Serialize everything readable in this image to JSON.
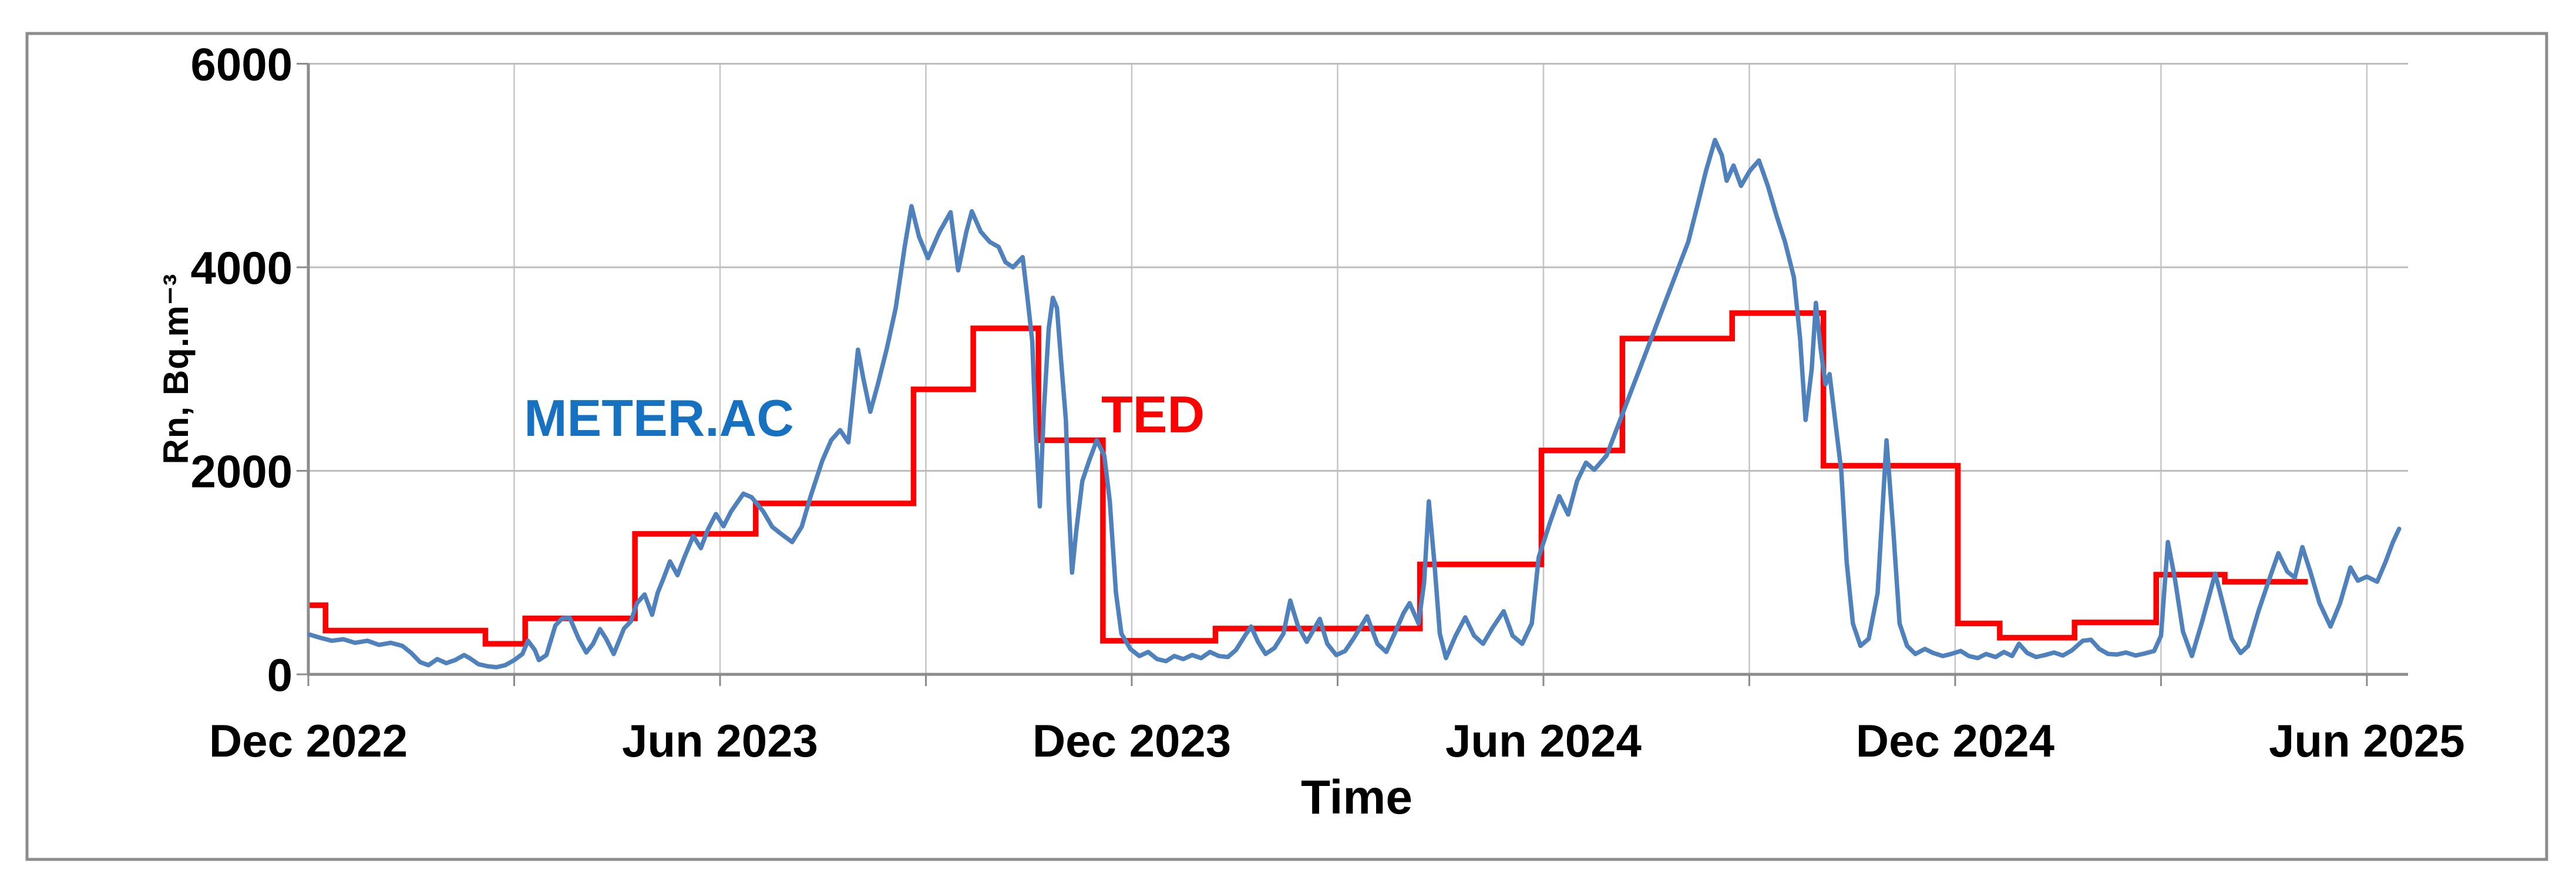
{
  "figure": {
    "background_color": "#ffffff",
    "border_color": "#8c8c8c"
  },
  "chart_data": {
    "type": "line",
    "title": "",
    "xlabel": "Time",
    "ylabel": "Rn, Bq.m⁻³",
    "x_unit": "months since Dec 2022",
    "xlim": [
      0,
      30.6
    ],
    "ylim": [
      0,
      6000
    ],
    "y_ticks": [
      "0",
      "2000",
      "4000",
      "6000"
    ],
    "y_tick_values": [
      0,
      2000,
      4000,
      6000
    ],
    "grid": {
      "h_lines": [
        2000,
        4000,
        6000
      ],
      "v_line_every_months": 3,
      "legend": "none"
    },
    "x_ticks": [
      {
        "t": 0,
        "label": "Dec 2022"
      },
      {
        "t": 3,
        "label": ""
      },
      {
        "t": 6,
        "label": "Jun 2023"
      },
      {
        "t": 9,
        "label": ""
      },
      {
        "t": 12,
        "label": "Dec 2023"
      },
      {
        "t": 15,
        "label": ""
      },
      {
        "t": 18,
        "label": "Jun 2024"
      },
      {
        "t": 21,
        "label": ""
      },
      {
        "t": 24,
        "label": "Dec 2024"
      },
      {
        "t": 27,
        "label": ""
      },
      {
        "t": 30,
        "label": "Jun 2025"
      }
    ],
    "series": [
      {
        "name": "METER.AC",
        "kind": "line",
        "color": "#4f81bd",
        "label_color": "#1771c1",
        "label_pos": {
          "t": 5.1,
          "v": 2520
        },
        "points": [
          [
            0.02,
            390
          ],
          [
            0.17,
            360
          ],
          [
            0.34,
            330
          ],
          [
            0.51,
            345
          ],
          [
            0.68,
            310
          ],
          [
            0.86,
            330
          ],
          [
            1.03,
            290
          ],
          [
            1.2,
            310
          ],
          [
            1.37,
            280
          ],
          [
            1.5,
            210
          ],
          [
            1.63,
            120
          ],
          [
            1.75,
            90
          ],
          [
            1.88,
            150
          ],
          [
            2.01,
            110
          ],
          [
            2.14,
            140
          ],
          [
            2.27,
            190
          ],
          [
            2.35,
            160
          ],
          [
            2.48,
            100
          ],
          [
            2.61,
            80
          ],
          [
            2.74,
            70
          ],
          [
            2.87,
            90
          ],
          [
            3.0,
            140
          ],
          [
            3.12,
            200
          ],
          [
            3.2,
            330
          ],
          [
            3.3,
            240
          ],
          [
            3.36,
            140
          ],
          [
            3.47,
            190
          ],
          [
            3.6,
            480
          ],
          [
            3.7,
            550
          ],
          [
            3.81,
            555
          ],
          [
            3.94,
            350
          ],
          [
            4.05,
            215
          ],
          [
            4.15,
            300
          ],
          [
            4.25,
            445
          ],
          [
            4.34,
            350
          ],
          [
            4.45,
            200
          ],
          [
            4.6,
            450
          ],
          [
            4.7,
            520
          ],
          [
            4.79,
            700
          ],
          [
            4.9,
            785
          ],
          [
            5.01,
            585
          ],
          [
            5.09,
            800
          ],
          [
            5.18,
            950
          ],
          [
            5.27,
            1110
          ],
          [
            5.38,
            975
          ],
          [
            5.48,
            1150
          ],
          [
            5.61,
            1360
          ],
          [
            5.72,
            1240
          ],
          [
            5.82,
            1420
          ],
          [
            5.94,
            1575
          ],
          [
            6.05,
            1455
          ],
          [
            6.16,
            1600
          ],
          [
            6.34,
            1775
          ],
          [
            6.46,
            1740
          ],
          [
            6.63,
            1600
          ],
          [
            6.76,
            1450
          ],
          [
            6.89,
            1380
          ],
          [
            7.05,
            1300
          ],
          [
            7.19,
            1450
          ],
          [
            7.32,
            1750
          ],
          [
            7.49,
            2100
          ],
          [
            7.62,
            2300
          ],
          [
            7.75,
            2400
          ],
          [
            7.87,
            2280
          ],
          [
            8.01,
            3190
          ],
          [
            8.09,
            2900
          ],
          [
            8.19,
            2580
          ],
          [
            8.3,
            2850
          ],
          [
            8.43,
            3200
          ],
          [
            8.56,
            3600
          ],
          [
            8.69,
            4200
          ],
          [
            8.79,
            4600
          ],
          [
            8.9,
            4300
          ],
          [
            9.03,
            4090
          ],
          [
            9.2,
            4350
          ],
          [
            9.36,
            4540
          ],
          [
            9.47,
            3970
          ],
          [
            9.59,
            4350
          ],
          [
            9.67,
            4550
          ],
          [
            9.8,
            4350
          ],
          [
            9.93,
            4250
          ],
          [
            10.06,
            4200
          ],
          [
            10.16,
            4050
          ],
          [
            10.27,
            4000
          ],
          [
            10.41,
            4100
          ],
          [
            10.48,
            3700
          ],
          [
            10.55,
            3270
          ],
          [
            10.6,
            2400
          ],
          [
            10.66,
            1650
          ],
          [
            10.72,
            2600
          ],
          [
            10.79,
            3400
          ],
          [
            10.85,
            3700
          ],
          [
            10.91,
            3600
          ],
          [
            10.98,
            3000
          ],
          [
            11.04,
            2500
          ],
          [
            11.08,
            1700
          ],
          [
            11.13,
            1000
          ],
          [
            11.19,
            1400
          ],
          [
            11.28,
            1900
          ],
          [
            11.38,
            2100
          ],
          [
            11.49,
            2300
          ],
          [
            11.6,
            2150
          ],
          [
            11.68,
            1700
          ],
          [
            11.77,
            800
          ],
          [
            11.85,
            400
          ],
          [
            11.98,
            250
          ],
          [
            12.11,
            180
          ],
          [
            12.24,
            220
          ],
          [
            12.37,
            150
          ],
          [
            12.5,
            130
          ],
          [
            12.62,
            180
          ],
          [
            12.75,
            150
          ],
          [
            12.88,
            190
          ],
          [
            13.01,
            160
          ],
          [
            13.14,
            220
          ],
          [
            13.27,
            180
          ],
          [
            13.4,
            170
          ],
          [
            13.52,
            240
          ],
          [
            13.65,
            380
          ],
          [
            13.74,
            470
          ],
          [
            13.84,
            320
          ],
          [
            13.95,
            200
          ],
          [
            14.08,
            260
          ],
          [
            14.21,
            400
          ],
          [
            14.31,
            725
          ],
          [
            14.42,
            480
          ],
          [
            14.55,
            320
          ],
          [
            14.74,
            545
          ],
          [
            14.85,
            300
          ],
          [
            14.98,
            190
          ],
          [
            15.11,
            230
          ],
          [
            15.23,
            350
          ],
          [
            15.43,
            570
          ],
          [
            15.58,
            300
          ],
          [
            15.71,
            220
          ],
          [
            15.83,
            400
          ],
          [
            15.96,
            600
          ],
          [
            16.05,
            700
          ],
          [
            16.18,
            500
          ],
          [
            16.26,
            900
          ],
          [
            16.33,
            1700
          ],
          [
            16.41,
            1100
          ],
          [
            16.49,
            400
          ],
          [
            16.58,
            160
          ],
          [
            16.72,
            380
          ],
          [
            16.86,
            560
          ],
          [
            16.99,
            380
          ],
          [
            17.12,
            300
          ],
          [
            17.26,
            460
          ],
          [
            17.42,
            620
          ],
          [
            17.55,
            380
          ],
          [
            17.69,
            300
          ],
          [
            17.83,
            500
          ],
          [
            17.93,
            1150
          ],
          [
            18.1,
            1500
          ],
          [
            18.23,
            1750
          ],
          [
            18.36,
            1570
          ],
          [
            18.49,
            1900
          ],
          [
            18.62,
            2080
          ],
          [
            18.74,
            2010
          ],
          [
            18.92,
            2150
          ],
          [
            19.09,
            2450
          ],
          [
            19.26,
            2750
          ],
          [
            19.43,
            3050
          ],
          [
            19.6,
            3350
          ],
          [
            19.77,
            3650
          ],
          [
            19.94,
            3950
          ],
          [
            20.11,
            4250
          ],
          [
            20.26,
            4650
          ],
          [
            20.37,
            4950
          ],
          [
            20.5,
            5250
          ],
          [
            20.6,
            5100
          ],
          [
            20.67,
            4850
          ],
          [
            20.77,
            5000
          ],
          [
            20.88,
            4800
          ],
          [
            21.01,
            4950
          ],
          [
            21.14,
            5050
          ],
          [
            21.27,
            4800
          ],
          [
            21.4,
            4500
          ],
          [
            21.52,
            4250
          ],
          [
            21.65,
            3900
          ],
          [
            21.74,
            3300
          ],
          [
            21.82,
            2500
          ],
          [
            21.91,
            3000
          ],
          [
            21.97,
            3650
          ],
          [
            22.04,
            3200
          ],
          [
            22.11,
            2850
          ],
          [
            22.17,
            2950
          ],
          [
            22.25,
            2500
          ],
          [
            22.34,
            2000
          ],
          [
            22.42,
            1100
          ],
          [
            22.51,
            500
          ],
          [
            22.62,
            280
          ],
          [
            22.74,
            350
          ],
          [
            22.87,
            800
          ],
          [
            23.0,
            2300
          ],
          [
            23.1,
            1400
          ],
          [
            23.19,
            500
          ],
          [
            23.3,
            280
          ],
          [
            23.42,
            200
          ],
          [
            23.56,
            250
          ],
          [
            23.68,
            210
          ],
          [
            23.82,
            180
          ],
          [
            23.94,
            200
          ],
          [
            24.08,
            230
          ],
          [
            24.2,
            180
          ],
          [
            24.33,
            160
          ],
          [
            24.45,
            200
          ],
          [
            24.59,
            170
          ],
          [
            24.71,
            220
          ],
          [
            24.83,
            180
          ],
          [
            24.93,
            300
          ],
          [
            25.05,
            210
          ],
          [
            25.18,
            170
          ],
          [
            25.31,
            190
          ],
          [
            25.44,
            215
          ],
          [
            25.57,
            185
          ],
          [
            25.7,
            235
          ],
          [
            25.86,
            330
          ],
          [
            25.98,
            340
          ],
          [
            26.1,
            250
          ],
          [
            26.23,
            200
          ],
          [
            26.36,
            195
          ],
          [
            26.49,
            215
          ],
          [
            26.63,
            185
          ],
          [
            26.76,
            205
          ],
          [
            26.9,
            230
          ],
          [
            27.0,
            380
          ],
          [
            27.1,
            1300
          ],
          [
            27.2,
            950
          ],
          [
            27.32,
            420
          ],
          [
            27.45,
            180
          ],
          [
            27.6,
            520
          ],
          [
            27.79,
            990
          ],
          [
            27.93,
            620
          ],
          [
            28.03,
            350
          ],
          [
            28.16,
            210
          ],
          [
            28.27,
            280
          ],
          [
            28.42,
            620
          ],
          [
            28.56,
            900
          ],
          [
            28.71,
            1190
          ],
          [
            28.84,
            1010
          ],
          [
            28.95,
            950
          ],
          [
            29.06,
            1250
          ],
          [
            29.18,
            1000
          ],
          [
            29.31,
            700
          ],
          [
            29.47,
            470
          ],
          [
            29.61,
            700
          ],
          [
            29.76,
            1050
          ],
          [
            29.87,
            920
          ],
          [
            30.0,
            960
          ],
          [
            30.15,
            910
          ],
          [
            30.27,
            1100
          ],
          [
            30.38,
            1300
          ],
          [
            30.47,
            1430
          ]
        ]
      },
      {
        "name": "TED",
        "kind": "step",
        "color": "#fe0000",
        "label_color": "#fe0000",
        "label_pos": {
          "t": 12.3,
          "v": 2550
        },
        "steps": [
          {
            "from": 0.02,
            "to": 0.25,
            "v": 680
          },
          {
            "from": 0.25,
            "to": 2.58,
            "v": 430
          },
          {
            "from": 2.58,
            "to": 3.16,
            "v": 300
          },
          {
            "from": 3.16,
            "to": 4.76,
            "v": 550
          },
          {
            "from": 4.76,
            "to": 6.52,
            "v": 1380
          },
          {
            "from": 6.52,
            "to": 8.82,
            "v": 1680
          },
          {
            "from": 8.82,
            "to": 9.69,
            "v": 2800
          },
          {
            "from": 9.69,
            "to": 10.64,
            "v": 3400
          },
          {
            "from": 10.64,
            "to": 11.58,
            "v": 2300
          },
          {
            "from": 11.58,
            "to": 13.22,
            "v": 330
          },
          {
            "from": 13.22,
            "to": 16.2,
            "v": 450
          },
          {
            "from": 16.2,
            "to": 17.97,
            "v": 1080
          },
          {
            "from": 17.97,
            "to": 19.15,
            "v": 2200
          },
          {
            "from": 19.15,
            "to": 20.75,
            "v": 3300
          },
          {
            "from": 20.75,
            "to": 22.08,
            "v": 3550
          },
          {
            "from": 22.08,
            "to": 24.04,
            "v": 2050
          },
          {
            "from": 24.04,
            "to": 24.65,
            "v": 500
          },
          {
            "from": 24.65,
            "to": 25.74,
            "v": 360
          },
          {
            "from": 25.74,
            "to": 26.93,
            "v": 510
          },
          {
            "from": 26.93,
            "to": 27.93,
            "v": 980
          },
          {
            "from": 27.93,
            "to": 29.14,
            "v": 910
          }
        ]
      }
    ]
  }
}
